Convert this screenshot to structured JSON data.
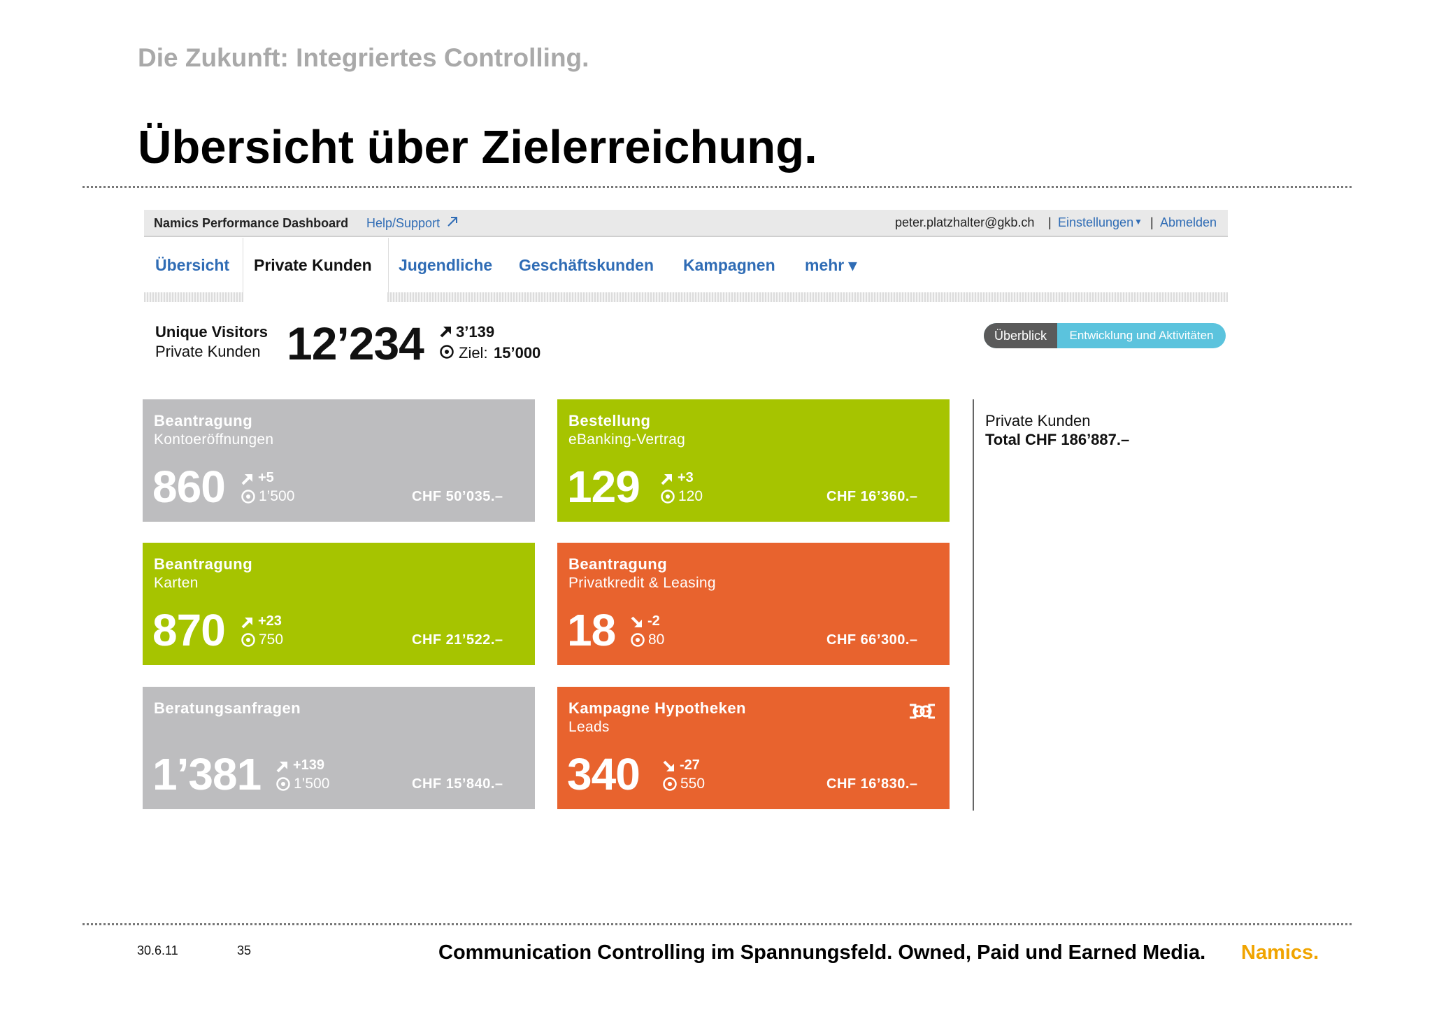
{
  "slide": {
    "subtitle": "Die Zukunft: Integriertes Controlling.",
    "title": "Übersicht über Zielerreichung.",
    "footer": {
      "date": "30.6.11",
      "page": "35",
      "text": "Communication Controlling im Spannungsfeld. Owned, Paid und Earned Media.",
      "brand": "Namics."
    }
  },
  "dashboard": {
    "app_name": "Namics Performance Dashboard",
    "help_link": "Help/Support",
    "user_email": "peter.platzhalter@gkb.ch",
    "separator": "|",
    "settings_link": "Einstellungen",
    "logout_link": "Abmelden",
    "tabs": [
      {
        "label": "Übersicht",
        "active": false
      },
      {
        "label": "Private Kunden",
        "active": true
      },
      {
        "label": "Jugendliche",
        "active": false
      },
      {
        "label": "Geschäftskunden",
        "active": false
      },
      {
        "label": "Kampagnen",
        "active": false
      },
      {
        "label": "mehr ▾",
        "active": false
      }
    ],
    "kpi": {
      "label": "Unique Visitors",
      "sublabel": "Private Kunden",
      "value": "12’234",
      "delta": "3’139",
      "target_label": "Ziel:",
      "target": "15’000"
    },
    "view_toggle": {
      "overview": "Überblick",
      "development": "Entwicklung und Aktivitäten"
    },
    "cards": [
      {
        "title": "Beantragung",
        "subtitle": "Kontoeröffnungen",
        "value": "860",
        "delta": "+5",
        "trend": "up",
        "target": "1’500",
        "chf": "CHF 50’035.–",
        "color": "#bdbdbf"
      },
      {
        "title": "Bestellung",
        "subtitle": "eBanking-Vertrag",
        "value": "129",
        "delta": "+3",
        "trend": "up",
        "target": "120",
        "chf": "CHF 16’360.–",
        "color": "#a6c400"
      },
      {
        "title": "Beantragung",
        "subtitle": "Karten",
        "value": "870",
        "delta": "+23",
        "trend": "up",
        "target": "750",
        "chf": "CHF 21’522.–",
        "color": "#a6c400"
      },
      {
        "title": "Beantragung",
        "subtitle": "Privatkredit & Leasing",
        "value": "18",
        "delta": "-2",
        "trend": "down",
        "target": "80",
        "chf": "CHF 66’300.–",
        "color": "#e8632e"
      },
      {
        "title": "Beratungsanfragen",
        "subtitle": "",
        "value": "1’381",
        "delta": "+139",
        "trend": "up",
        "target": "1’500",
        "chf": "CHF 15’840.–",
        "color": "#bdbdbf"
      },
      {
        "title": "Kampagne Hypotheken",
        "subtitle": "Leads",
        "value": "340",
        "delta": "-27",
        "trend": "down",
        "target": "550",
        "chf": "CHF 16’830.–",
        "color": "#e8632e",
        "icon": "campaign-icon"
      }
    ],
    "summary": {
      "label": "Private Kunden",
      "total": "Total CHF 186’887.–"
    }
  }
}
